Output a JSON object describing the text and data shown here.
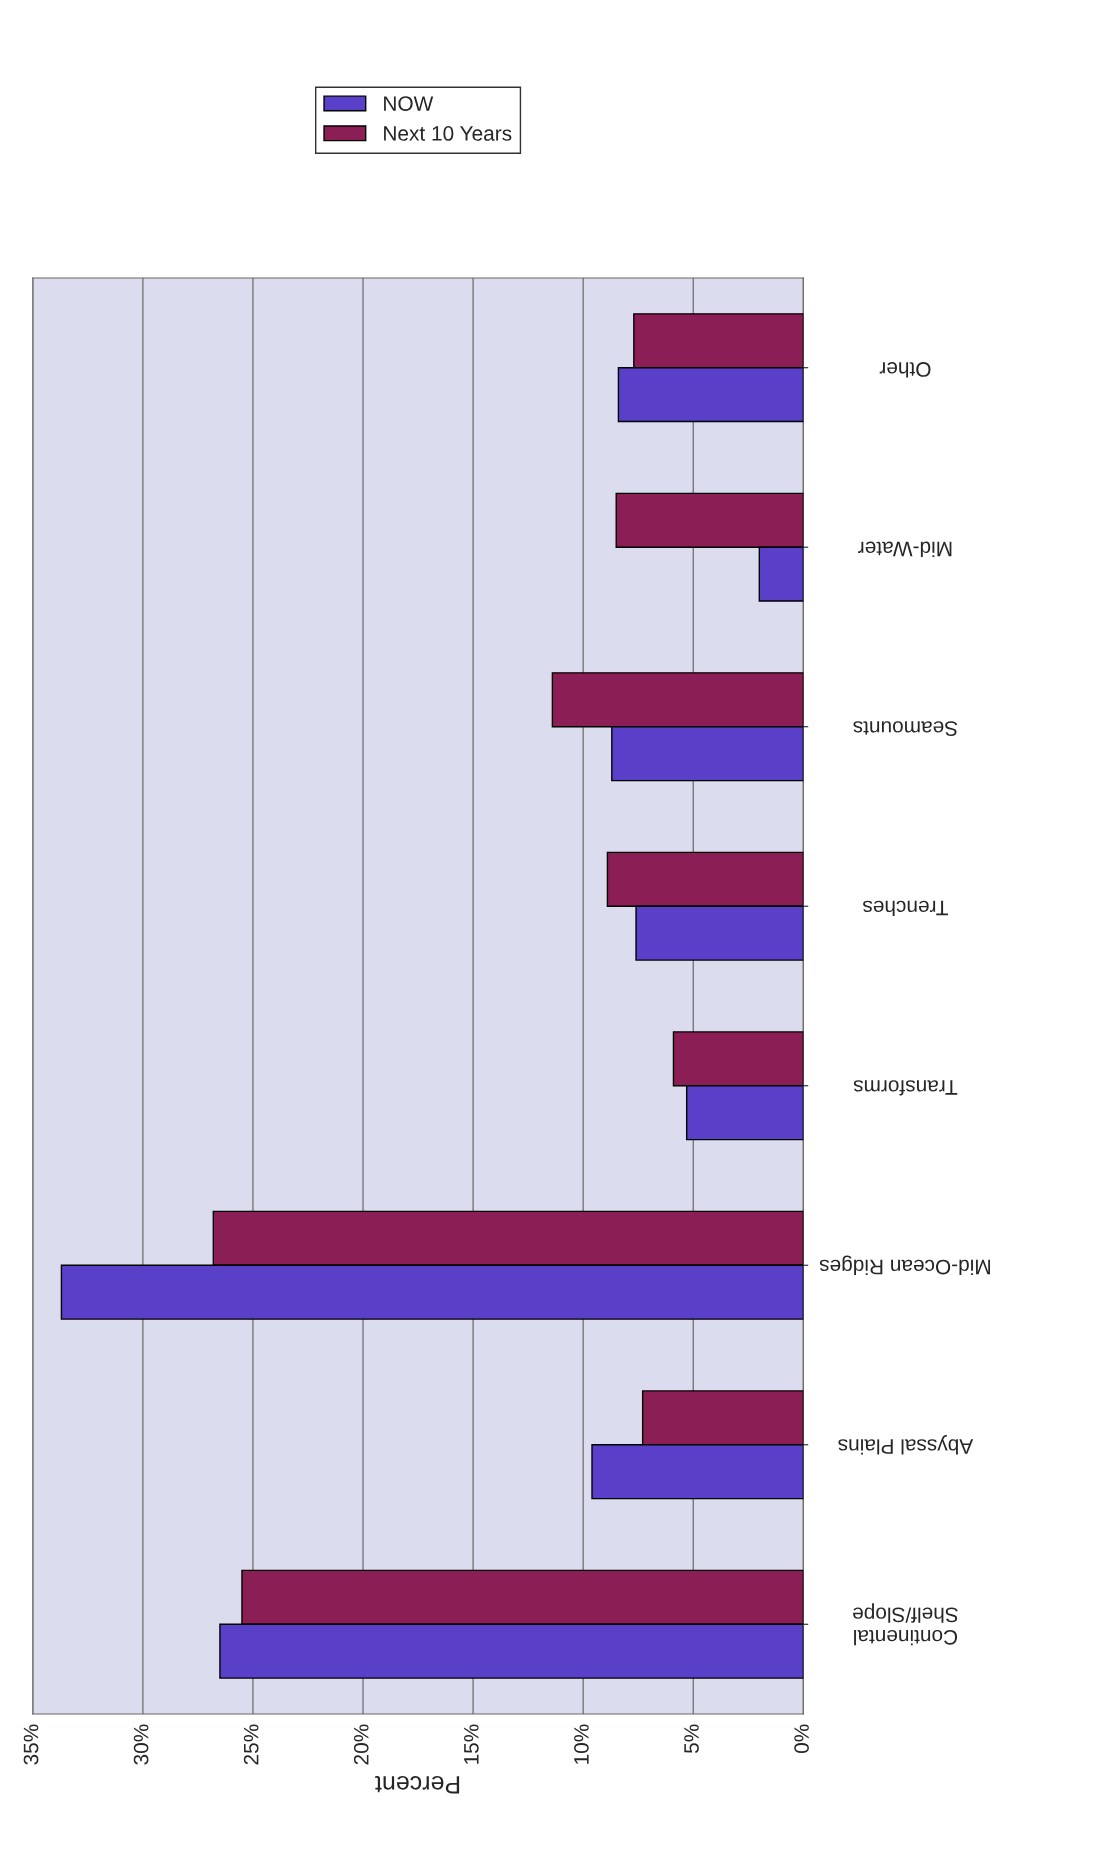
{
  "chart_data": {
    "type": "bar",
    "orientation": "horizontal",
    "xlabel": "Percent",
    "categories": [
      "Other",
      "Mid-Water",
      "Seamounts",
      "Trenches",
      "Transforms",
      "Mid-Ocean Ridges",
      "Abyssal Plains",
      "Continental\nShelf/Slope"
    ],
    "series": [
      {
        "name": "Next 10 Years",
        "color": "#8b1f55",
        "values": [
          7.7,
          8.5,
          11.4,
          8.9,
          5.9,
          26.8,
          7.3,
          25.5
        ]
      },
      {
        "name": "NOW",
        "color": "#5a3fc8",
        "values": [
          8.4,
          2.0,
          8.7,
          7.6,
          5.3,
          33.7,
          9.6,
          26.5
        ]
      }
    ],
    "xlim": [
      35,
      0
    ],
    "xticks": [
      {
        "value": 35,
        "label": "35%"
      },
      {
        "value": 30,
        "label": "30%"
      },
      {
        "value": 25,
        "label": "25%"
      },
      {
        "value": 20,
        "label": "20%"
      },
      {
        "value": 15,
        "label": "15%"
      },
      {
        "value": 10,
        "label": "10%"
      },
      {
        "value": 5,
        "label": "5%"
      },
      {
        "value": 0,
        "label": "0%"
      }
    ],
    "grid": "x",
    "legend": "top"
  }
}
